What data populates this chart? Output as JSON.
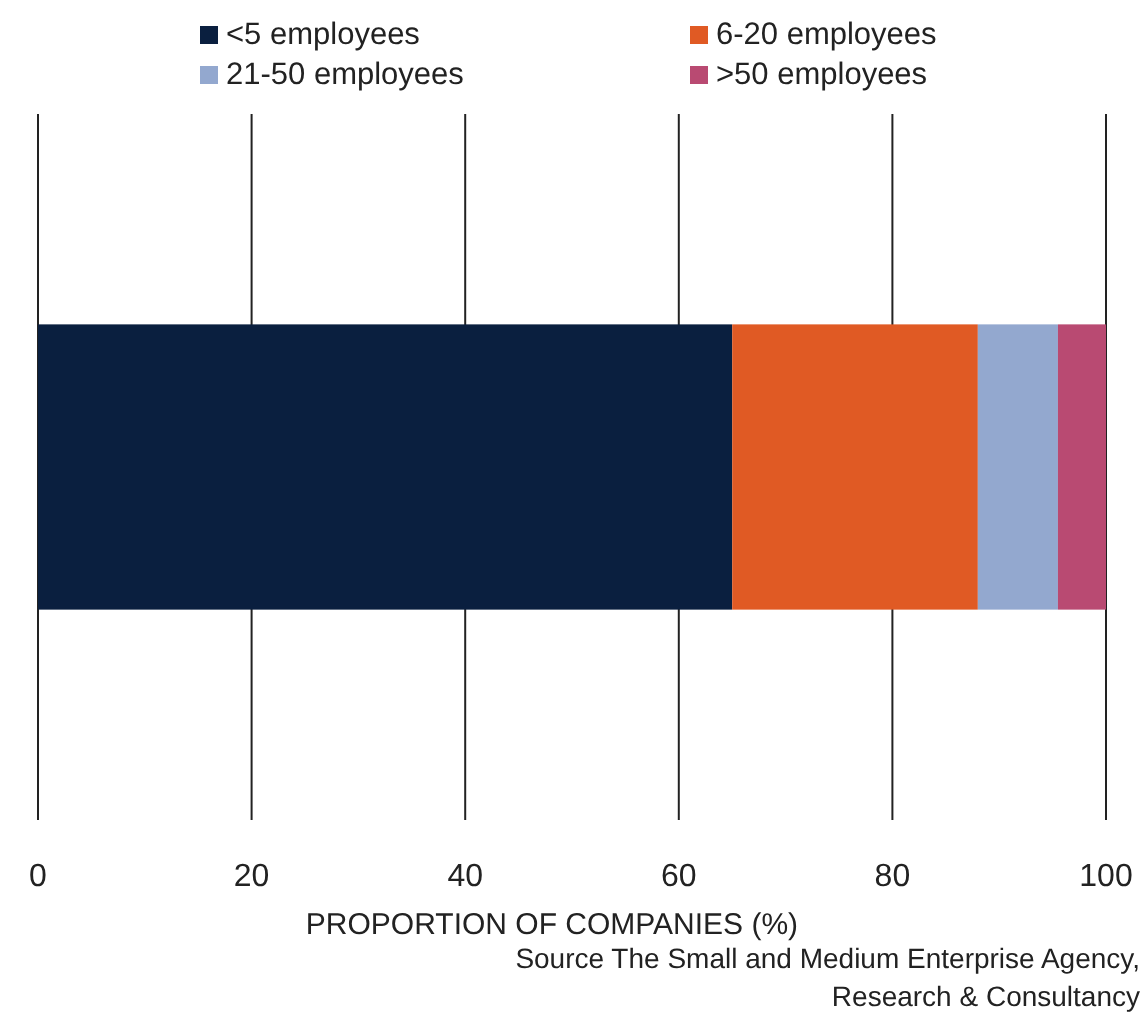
{
  "chart_data": {
    "type": "bar",
    "orientation": "horizontal",
    "stacked": true,
    "categories": [
      null
    ],
    "series": [
      {
        "name": "<5 employees",
        "color": "#0a1f3f",
        "values": [
          65
        ]
      },
      {
        "name": "6-20 employees",
        "color": "#e05a24",
        "values": [
          23
        ]
      },
      {
        "name": "21-50 employees",
        "color": "#93a8cf",
        "values": [
          7.5
        ]
      },
      {
        "name": ">50 employees",
        "color": "#b94a72",
        "values": [
          4.5
        ]
      }
    ],
    "xlim": [
      0,
      100
    ],
    "xticks": [
      0,
      20,
      40,
      60,
      80,
      100
    ],
    "grid": "x",
    "legend": "top",
    "xlabel": "PROPORTION OF COMPANIES (%)",
    "annotations": [
      "Source The Small and Medium Enterprise Agency, Research & Consultancy"
    ]
  }
}
